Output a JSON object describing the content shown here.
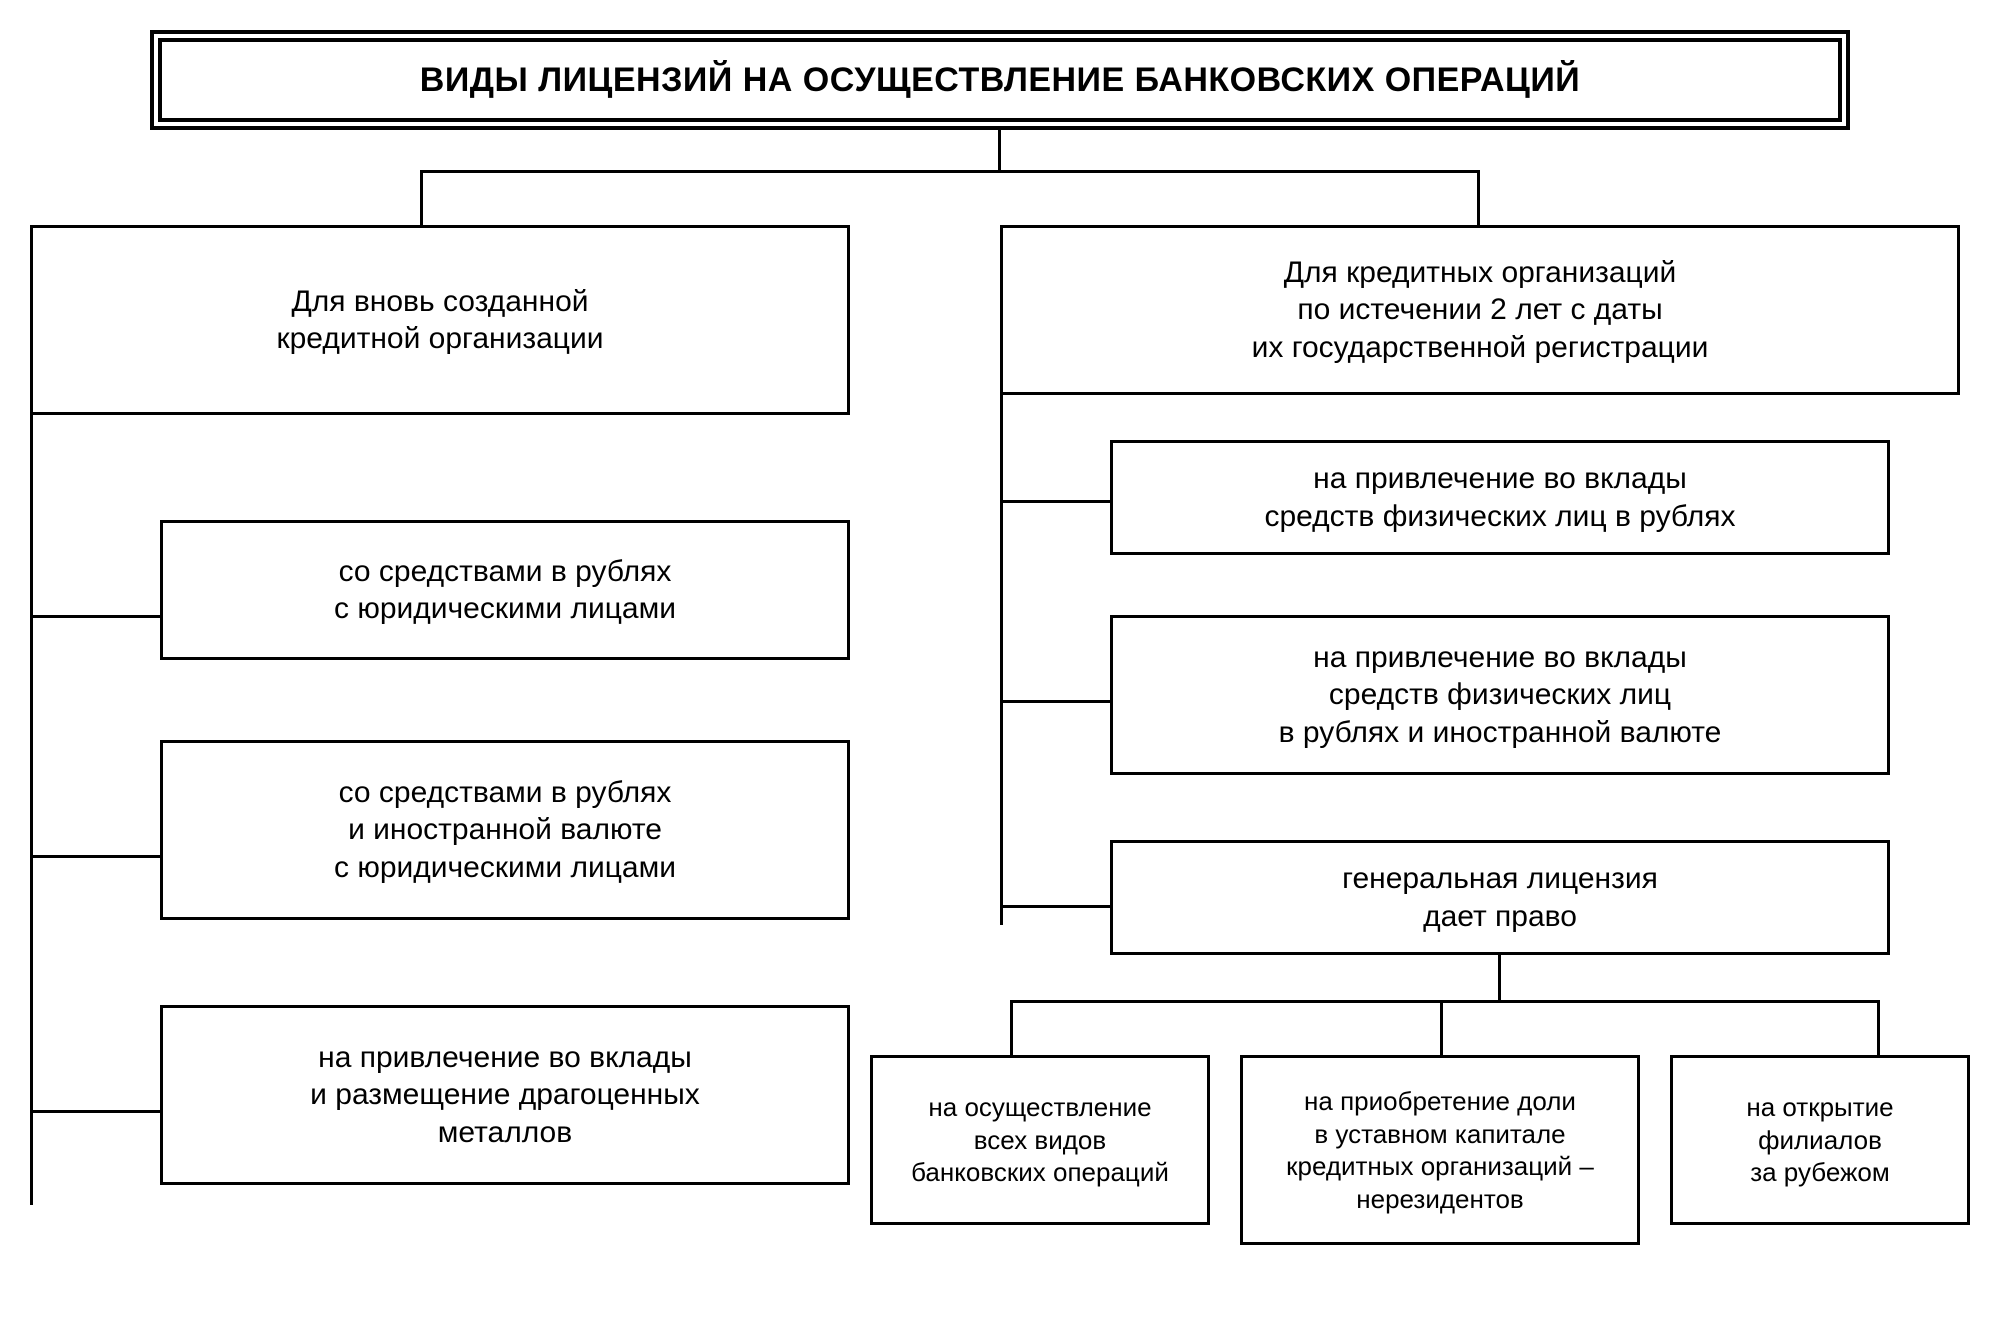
{
  "diagram": {
    "type": "tree",
    "background_color": "#ffffff",
    "border_color": "#000000",
    "line_color": "#000000",
    "font_family": "Arial",
    "title_fontsize": 34,
    "category_fontsize": 30,
    "item_fontsize": 30,
    "sub_fontsize": 26,
    "title": "ВИДЫ ЛИЦЕНЗИЙ НА ОСУЩЕСТВЛЕНИЕ БАНКОВСКИХ ОПЕРАЦИЙ",
    "categories": [
      {
        "label": "Для вновь созданной\nкредитной организации",
        "items": [
          "со средствами в рублях\nс юридическими лицами",
          "со средствами в рублях\nи иностранной валюте\nс юридическими лицами",
          "на привлечение во вклады\nи размещение драгоценных\nметаллов"
        ]
      },
      {
        "label": "Для кредитных организаций\nпо истечении 2 лет с даты\nих государственной регистрации",
        "items": [
          "на привлечение во вклады\nсредств физических лиц в рублях",
          "на привлечение во вклады\nсредств физических лиц\nв рублях и иностранной валюте",
          "генеральная лицензия\nдает право"
        ]
      }
    ],
    "general_sub": [
      "на осуществление\nвсех видов\nбанковских операций",
      "на приобретение доли\nв уставном капитале\nкредитных организаций –\nнерезидентов",
      "на открытие\nфилиалов\nза рубежом"
    ]
  }
}
